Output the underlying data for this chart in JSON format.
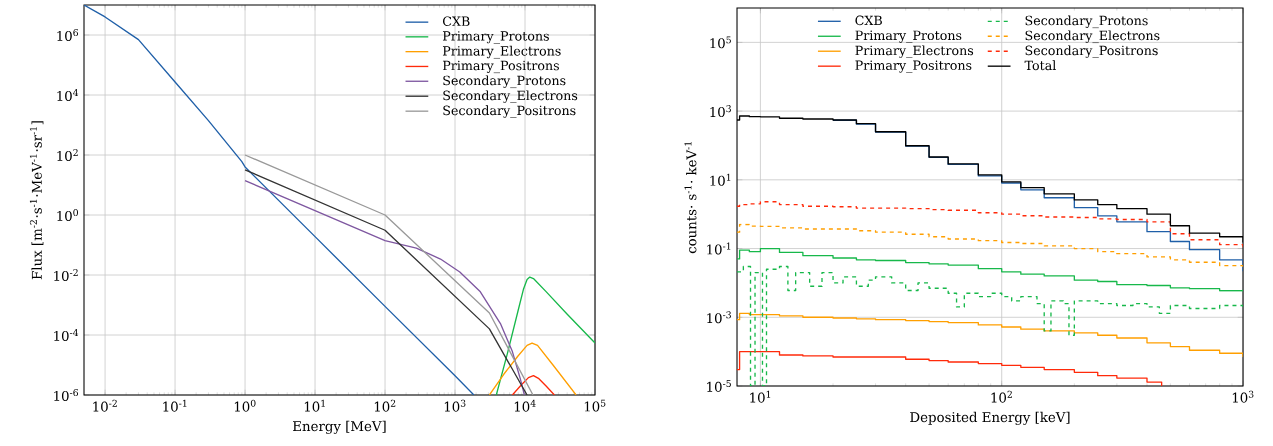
{
  "chart_data": [
    {
      "type": "line",
      "xlabel": "Energy [MeV]",
      "ylabel": "Flux [m$^{-2}$·s$^{-1}$·MeV$^{-1}$·sr$^{-1}$]",
      "log": "xy",
      "grid": true,
      "legend": "top right",
      "xlim": [
        0.005,
        100000
      ],
      "ylim": [
        1e-06,
        10000000.0
      ],
      "xticks": [
        {
          "value": 0.01,
          "label": "10$^{-2}$"
        },
        {
          "value": 0.1,
          "label": "10$^{-1}$"
        },
        {
          "value": 1,
          "label": "10$^{0}$"
        },
        {
          "value": 10,
          "label": "10$^{1}$"
        },
        {
          "value": 100,
          "label": "10$^{2}$"
        },
        {
          "value": 1000,
          "label": "10$^{3}$"
        },
        {
          "value": 10000,
          "label": "10$^{4}$"
        },
        {
          "value": 100000,
          "label": "10$^{5}$"
        }
      ],
      "yticks": [
        {
          "value": 1e-06,
          "label": "10$^{-6}$"
        },
        {
          "value": 0.0001,
          "label": "10$^{-4}$"
        },
        {
          "value": 0.01,
          "label": "10$^{-2}$"
        },
        {
          "value": 1,
          "label": "10$^{0}$"
        },
        {
          "value": 100,
          "label": "10$^{2}$"
        },
        {
          "value": 10000,
          "label": "10$^{4}$"
        },
        {
          "value": 1000000,
          "label": "10$^{6}$"
        }
      ],
      "series": [
        {
          "name": "CXB",
          "color": "#1f5fa8",
          "x": [
            0.005,
            0.01,
            0.03,
            0.1,
            0.3,
            0.9,
            1,
            10,
            100,
            1000,
            1860
          ],
          "values": [
            10000000.0,
            4000000.0,
            700000.0,
            27000.0,
            1400.0,
            60,
            40,
            0.19,
            0.0009,
            4.4e-06,
            1e-06
          ]
        },
        {
          "name": "Primary_Protons",
          "color": "#17b84a",
          "x": [
            3890,
            5620,
            7940,
            9550,
            10700,
            11700,
            13200,
            20000,
            39800,
            100000
          ],
          "values": [
            1e-06,
            2.5e-05,
            0.00063,
            0.0035,
            0.0071,
            0.0085,
            0.0076,
            0.0028,
            0.0005,
            5.4e-05
          ]
        },
        {
          "name": "Primary_Electrons",
          "color": "#ff9f00",
          "x": [
            3100,
            5000,
            7940,
            10700,
            12600,
            15100,
            25100,
            53700
          ],
          "values": [
            1e-06,
            5e-06,
            2e-05,
            4.5e-05,
            5.4e-05,
            4.5e-05,
            1e-05,
            1e-06
          ]
        },
        {
          "name": "Primary_Positrons",
          "color": "#ff2a0a",
          "x": [
            6600,
            8900,
            11200,
            13200,
            15800,
            20000,
            26300
          ],
          "values": [
            1e-06,
            2.2e-06,
            3.8e-06,
            4.4e-06,
            3.5e-06,
            2e-06,
            1e-06
          ]
        },
        {
          "name": "Secondary_Protons",
          "color": "#7e57a0",
          "x": [
            1,
            100,
            280,
            620,
            1170,
            2300,
            4500,
            6600,
            8500,
            9800
          ],
          "values": [
            14,
            0.14,
            0.079,
            0.034,
            0.0126,
            0.00275,
            0.00023,
            2.8e-05,
            3.7e-06,
            1e-06
          ]
        },
        {
          "name": "Secondary_Electrons",
          "color": "#333333",
          "x": [
            1,
            100,
            3100,
            10700
          ],
          "values": [
            32,
            0.31,
            0.00016,
            1e-06
          ]
        },
        {
          "name": "Secondary_Positrons",
          "color": "#999999",
          "x": [
            1,
            100,
            3100,
            13000
          ],
          "values": [
            100,
            1,
            0.00054,
            1e-06
          ]
        }
      ]
    },
    {
      "type": "step",
      "xlabel": "Deposited Energy [keV]",
      "ylabel": "counts· s$^{-1}$· keV$^{-1}$",
      "log": "xy",
      "grid": true,
      "legend": "top",
      "xlim": [
        8,
        1000
      ],
      "ylim": [
        1e-05,
        1000000.0
      ],
      "xticks": [
        {
          "value": 10,
          "label": "10$^{1}$"
        },
        {
          "value": 100,
          "label": "10$^{2}$"
        },
        {
          "value": 1000,
          "label": "10$^{3}$"
        }
      ],
      "yticks": [
        {
          "value": 1e-05,
          "label": "10$^{-5}$"
        },
        {
          "value": 0.001,
          "label": "10$^{-3}$"
        },
        {
          "value": 0.1,
          "label": "10$^{-1}$"
        },
        {
          "value": 10,
          "label": "10$^{1}$"
        },
        {
          "value": 1000,
          "label": "10$^{3}$"
        },
        {
          "value": 100000,
          "label": "10$^{5}$"
        }
      ],
      "x": [
        8,
        8.2,
        9,
        10,
        12,
        15,
        20,
        25,
        30,
        40,
        50,
        60,
        80,
        100,
        120,
        150,
        200,
        250,
        300,
        400,
        500,
        600,
        800,
        1000
      ],
      "series": [
        {
          "name": "CXB",
          "color": "#1f5fa8",
          "values": [
            null,
            null,
            null,
            null,
            null,
            null,
            540,
            420,
            245,
            96,
            45,
            28,
            13,
            8.1,
            5.1,
            3.0,
            1.55,
            0.89,
            0.6,
            0.31,
            0.16,
            0.093,
            0.047,
            0.022
          ]
        },
        {
          "name": "Primary_Protons",
          "color": "#17b84a",
          "values": [
            0.05,
            0.09,
            0.081,
            0.1,
            0.077,
            0.062,
            0.053,
            0.047,
            0.045,
            0.039,
            0.036,
            0.033,
            0.026,
            0.021,
            0.018,
            0.016,
            0.012,
            0.011,
            0.0089,
            0.0084,
            0.0072,
            0.0068,
            0.0059,
            0.0063
          ]
        },
        {
          "name": "Primary_Electrons",
          "color": "#ff9f00",
          "values": [
            0.00085,
            0.0013,
            0.0012,
            0.0012,
            0.0011,
            0.001,
            0.00095,
            0.0009,
            0.00085,
            0.0008,
            0.00075,
            0.0007,
            0.0006,
            0.00052,
            0.00045,
            0.0004,
            0.00035,
            0.0003,
            0.00025,
            0.00018,
            0.00014,
            0.00011,
            9e-05,
            7e-05
          ]
        },
        {
          "name": "Primary_Positrons",
          "color": "#ff2a0a",
          "x": [
            8,
            8.2,
            10,
            12,
            15,
            20,
            25,
            30,
            40,
            50,
            60,
            80,
            100,
            120,
            150,
            200,
            250,
            300,
            400,
            460
          ],
          "values": [
            3e-05,
            0.0001,
            0.0001,
            8e-05,
            7.5e-05,
            7e-05,
            7e-05,
            7e-05,
            6e-05,
            5.5e-05,
            5e-05,
            4.5e-05,
            4e-05,
            3.5e-05,
            3e-05,
            2.5e-05,
            2e-05,
            1.7e-05,
            1.3e-05,
            1e-05
          ]
        },
        {
          "name": "Secondary_Protons",
          "color": "#17b84a",
          "line_style": "dashed",
          "x": [
            8,
            8.5,
            9.1,
            9.5,
            10.2,
            10.6,
            12,
            13,
            14,
            16,
            18,
            20,
            22,
            25,
            28,
            30,
            35,
            40,
            45,
            50,
            60,
            65,
            70,
            80,
            90,
            100,
            110,
            120,
            140,
            150,
            160,
            180,
            190,
            200,
            250,
            300,
            350,
            400,
            450,
            500,
            600,
            800,
            1000
          ],
          "values": [
            0.021,
            0.03,
            1e-05,
            0.02,
            1e-05,
            0.025,
            0.03,
            0.006,
            0.02,
            0.008,
            0.02,
            0.01,
            0.015,
            0.008,
            0.012,
            0.015,
            0.01,
            0.006,
            0.01,
            0.007,
            0.005,
            0.002,
            0.005,
            0.004,
            0.005,
            0.004,
            0.003,
            0.004,
            0.0025,
            0.0004,
            0.003,
            0.0025,
            0.0003,
            0.003,
            0.0025,
            0.0022,
            0.0025,
            0.002,
            0.0013,
            0.0022,
            0.0018,
            0.0022,
            0.0018
          ]
        },
        {
          "name": "Secondary_Electrons",
          "color": "#ff9f00",
          "line_style": "dashed",
          "values": [
            0.3,
            0.5,
            0.45,
            0.44,
            0.4,
            0.37,
            0.37,
            0.33,
            0.3,
            0.26,
            0.22,
            0.19,
            0.17,
            0.15,
            0.14,
            0.12,
            0.1,
            0.081,
            0.071,
            0.057,
            0.047,
            0.04,
            0.032,
            0.024
          ]
        },
        {
          "name": "Secondary_Positrons",
          "color": "#ff2a0a",
          "line_style": "dashed",
          "values": [
            1.7,
            1.9,
            2.0,
            2.3,
            1.9,
            1.7,
            1.65,
            1.5,
            1.5,
            1.45,
            1.35,
            1.3,
            1.1,
            1.0,
            0.9,
            0.83,
            0.8,
            0.73,
            0.7,
            0.6,
            0.27,
            0.18,
            0.13,
            0.1
          ]
        },
        {
          "name": "Total",
          "color": "#000000",
          "values": [
            550,
            720,
            690,
            680,
            620,
            590,
            550,
            430,
            250,
            98,
            46,
            29,
            14,
            8.7,
            5.9,
            3.9,
            2.6,
            1.9,
            1.45,
            1.0,
            0.46,
            0.28,
            0.22,
            0.15
          ]
        }
      ]
    }
  ]
}
